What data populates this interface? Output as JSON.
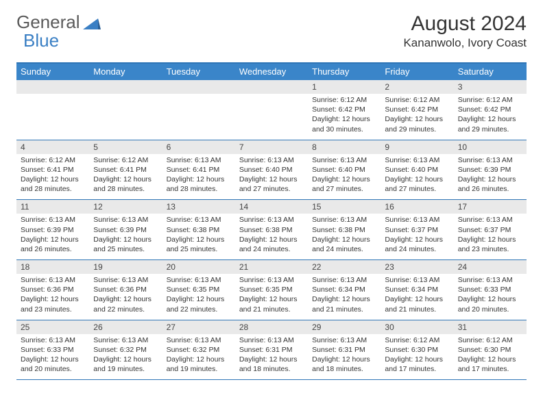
{
  "logo": {
    "word1": "General",
    "word2": "Blue"
  },
  "title": "August 2024",
  "location": "Kananwolo, Ivory Coast",
  "colors": {
    "header_bg": "#3a85c9",
    "header_text": "#ffffff",
    "border": "#2e75b6",
    "daynum_bg": "#e9e9e9",
    "text": "#333333",
    "logo_blue": "#3a7fc4",
    "logo_gray": "#5a5a5a"
  },
  "dayHeaders": [
    "Sunday",
    "Monday",
    "Tuesday",
    "Wednesday",
    "Thursday",
    "Friday",
    "Saturday"
  ],
  "weeks": [
    [
      {
        "n": "",
        "l": []
      },
      {
        "n": "",
        "l": []
      },
      {
        "n": "",
        "l": []
      },
      {
        "n": "",
        "l": []
      },
      {
        "n": "1",
        "l": [
          "Sunrise: 6:12 AM",
          "Sunset: 6:42 PM",
          "Daylight: 12 hours and 30 minutes."
        ]
      },
      {
        "n": "2",
        "l": [
          "Sunrise: 6:12 AM",
          "Sunset: 6:42 PM",
          "Daylight: 12 hours and 29 minutes."
        ]
      },
      {
        "n": "3",
        "l": [
          "Sunrise: 6:12 AM",
          "Sunset: 6:42 PM",
          "Daylight: 12 hours and 29 minutes."
        ]
      }
    ],
    [
      {
        "n": "4",
        "l": [
          "Sunrise: 6:12 AM",
          "Sunset: 6:41 PM",
          "Daylight: 12 hours and 28 minutes."
        ]
      },
      {
        "n": "5",
        "l": [
          "Sunrise: 6:12 AM",
          "Sunset: 6:41 PM",
          "Daylight: 12 hours and 28 minutes."
        ]
      },
      {
        "n": "6",
        "l": [
          "Sunrise: 6:13 AM",
          "Sunset: 6:41 PM",
          "Daylight: 12 hours and 28 minutes."
        ]
      },
      {
        "n": "7",
        "l": [
          "Sunrise: 6:13 AM",
          "Sunset: 6:40 PM",
          "Daylight: 12 hours and 27 minutes."
        ]
      },
      {
        "n": "8",
        "l": [
          "Sunrise: 6:13 AM",
          "Sunset: 6:40 PM",
          "Daylight: 12 hours and 27 minutes."
        ]
      },
      {
        "n": "9",
        "l": [
          "Sunrise: 6:13 AM",
          "Sunset: 6:40 PM",
          "Daylight: 12 hours and 27 minutes."
        ]
      },
      {
        "n": "10",
        "l": [
          "Sunrise: 6:13 AM",
          "Sunset: 6:39 PM",
          "Daylight: 12 hours and 26 minutes."
        ]
      }
    ],
    [
      {
        "n": "11",
        "l": [
          "Sunrise: 6:13 AM",
          "Sunset: 6:39 PM",
          "Daylight: 12 hours and 26 minutes."
        ]
      },
      {
        "n": "12",
        "l": [
          "Sunrise: 6:13 AM",
          "Sunset: 6:39 PM",
          "Daylight: 12 hours and 25 minutes."
        ]
      },
      {
        "n": "13",
        "l": [
          "Sunrise: 6:13 AM",
          "Sunset: 6:38 PM",
          "Daylight: 12 hours and 25 minutes."
        ]
      },
      {
        "n": "14",
        "l": [
          "Sunrise: 6:13 AM",
          "Sunset: 6:38 PM",
          "Daylight: 12 hours and 24 minutes."
        ]
      },
      {
        "n": "15",
        "l": [
          "Sunrise: 6:13 AM",
          "Sunset: 6:38 PM",
          "Daylight: 12 hours and 24 minutes."
        ]
      },
      {
        "n": "16",
        "l": [
          "Sunrise: 6:13 AM",
          "Sunset: 6:37 PM",
          "Daylight: 12 hours and 24 minutes."
        ]
      },
      {
        "n": "17",
        "l": [
          "Sunrise: 6:13 AM",
          "Sunset: 6:37 PM",
          "Daylight: 12 hours and 23 minutes."
        ]
      }
    ],
    [
      {
        "n": "18",
        "l": [
          "Sunrise: 6:13 AM",
          "Sunset: 6:36 PM",
          "Daylight: 12 hours and 23 minutes."
        ]
      },
      {
        "n": "19",
        "l": [
          "Sunrise: 6:13 AM",
          "Sunset: 6:36 PM",
          "Daylight: 12 hours and 22 minutes."
        ]
      },
      {
        "n": "20",
        "l": [
          "Sunrise: 6:13 AM",
          "Sunset: 6:35 PM",
          "Daylight: 12 hours and 22 minutes."
        ]
      },
      {
        "n": "21",
        "l": [
          "Sunrise: 6:13 AM",
          "Sunset: 6:35 PM",
          "Daylight: 12 hours and 21 minutes."
        ]
      },
      {
        "n": "22",
        "l": [
          "Sunrise: 6:13 AM",
          "Sunset: 6:34 PM",
          "Daylight: 12 hours and 21 minutes."
        ]
      },
      {
        "n": "23",
        "l": [
          "Sunrise: 6:13 AM",
          "Sunset: 6:34 PM",
          "Daylight: 12 hours and 21 minutes."
        ]
      },
      {
        "n": "24",
        "l": [
          "Sunrise: 6:13 AM",
          "Sunset: 6:33 PM",
          "Daylight: 12 hours and 20 minutes."
        ]
      }
    ],
    [
      {
        "n": "25",
        "l": [
          "Sunrise: 6:13 AM",
          "Sunset: 6:33 PM",
          "Daylight: 12 hours and 20 minutes."
        ]
      },
      {
        "n": "26",
        "l": [
          "Sunrise: 6:13 AM",
          "Sunset: 6:32 PM",
          "Daylight: 12 hours and 19 minutes."
        ]
      },
      {
        "n": "27",
        "l": [
          "Sunrise: 6:13 AM",
          "Sunset: 6:32 PM",
          "Daylight: 12 hours and 19 minutes."
        ]
      },
      {
        "n": "28",
        "l": [
          "Sunrise: 6:13 AM",
          "Sunset: 6:31 PM",
          "Daylight: 12 hours and 18 minutes."
        ]
      },
      {
        "n": "29",
        "l": [
          "Sunrise: 6:13 AM",
          "Sunset: 6:31 PM",
          "Daylight: 12 hours and 18 minutes."
        ]
      },
      {
        "n": "30",
        "l": [
          "Sunrise: 6:12 AM",
          "Sunset: 6:30 PM",
          "Daylight: 12 hours and 17 minutes."
        ]
      },
      {
        "n": "31",
        "l": [
          "Sunrise: 6:12 AM",
          "Sunset: 6:30 PM",
          "Daylight: 12 hours and 17 minutes."
        ]
      }
    ]
  ]
}
